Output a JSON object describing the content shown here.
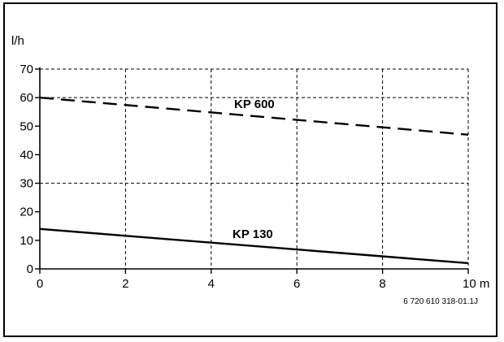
{
  "chart_data": {
    "type": "line",
    "x_unit": "m",
    "y_unit": "l/h",
    "xlim": [
      0,
      10
    ],
    "ylim": [
      0,
      70
    ],
    "x_ticks": [
      0,
      2,
      4,
      6,
      8,
      10
    ],
    "y_ticks": [
      0,
      10,
      20,
      30,
      40,
      50,
      60,
      70
    ],
    "x_tick_labels": [
      "0",
      "2",
      "4",
      "6",
      "8",
      "10 m"
    ],
    "y_tick_labels": [
      "0",
      "10",
      "20",
      "30",
      "40",
      "50",
      "60",
      "70"
    ],
    "grid": "dashed",
    "series": [
      {
        "name": "KP 600",
        "style": "dashed",
        "x": [
          0,
          10
        ],
        "y": [
          60,
          47
        ]
      },
      {
        "name": "KP 130",
        "style": "solid",
        "x": [
          0,
          10
        ],
        "y": [
          14,
          2
        ]
      }
    ]
  },
  "figure_id": "6 720 610 318-01.1J",
  "colors": {
    "line": "#000000",
    "grid": "#000000",
    "background": "#ffffff"
  }
}
